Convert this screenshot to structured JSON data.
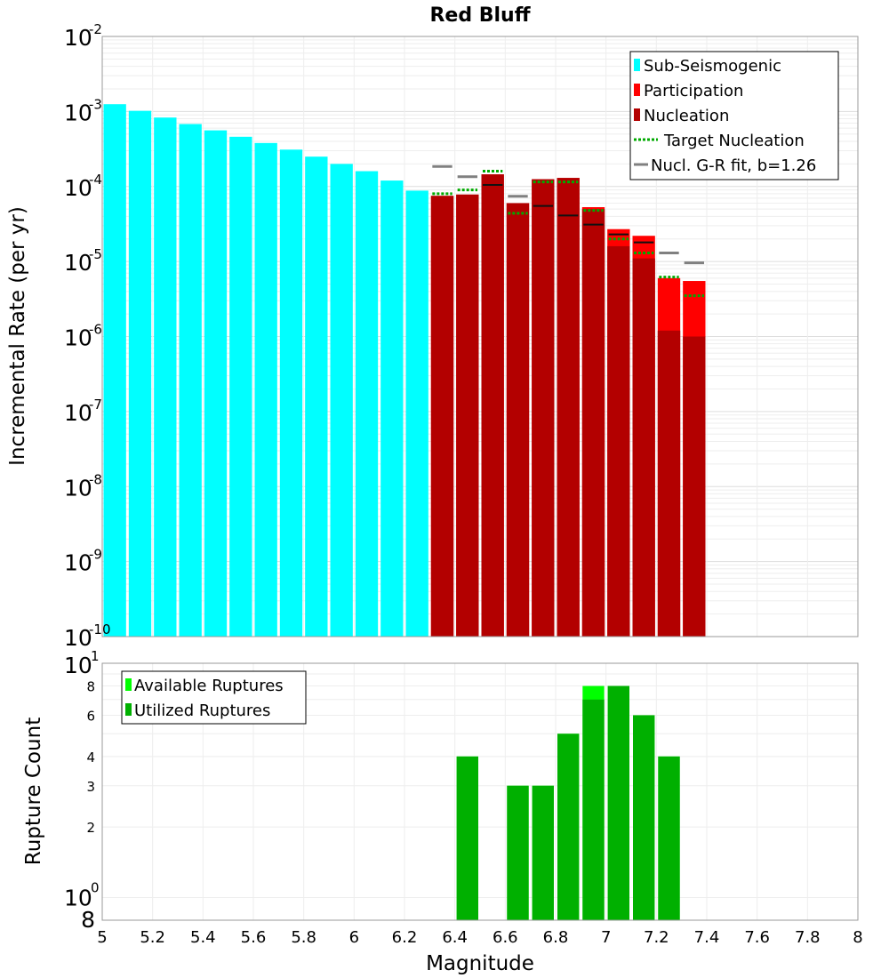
{
  "chart_data": [
    {
      "type": "bar",
      "title": "Red Bluff",
      "xlabel": "",
      "ylabel": "Incremental Rate (per yr)",
      "yscale": "log",
      "xlim": [
        5,
        8
      ],
      "ylim": [
        1e-10,
        0.01
      ],
      "y_tick_exponents": [
        -2,
        -3,
        -4,
        -5,
        -6,
        -7,
        -8,
        -9,
        -10
      ],
      "y_tick_base": "10",
      "bin_width": 0.1,
      "series": [
        {
          "name": "Sub-Seismogenic",
          "color": "#00ffff",
          "x": [
            5.05,
            5.15,
            5.25,
            5.35,
            5.45,
            5.55,
            5.65,
            5.75,
            5.85,
            5.95,
            6.05,
            6.15,
            6.25
          ],
          "values": [
            0.00125,
            0.00102,
            0.00083,
            0.00068,
            0.00056,
            0.00046,
            0.00038,
            0.00031,
            0.00025,
            0.0002,
            0.00016,
            0.00012,
            8.8e-05
          ]
        },
        {
          "name": "Participation",
          "color": "#ff0000",
          "x": [
            6.35,
            6.45,
            6.55,
            6.65,
            6.75,
            6.85,
            6.95,
            7.05,
            7.15,
            7.25,
            7.35
          ],
          "values": [
            7.5e-05,
            7.8e-05,
            0.000145,
            6e-05,
            0.000125,
            0.00013,
            5.3e-05,
            2.7e-05,
            2.2e-05,
            6e-06,
            5.5e-06
          ]
        },
        {
          "name": "Nucleation",
          "color": "#b30000",
          "x": [
            6.35,
            6.45,
            6.55,
            6.65,
            6.75,
            6.85,
            6.95,
            7.05,
            7.15,
            7.25,
            7.35
          ],
          "values": [
            7.5e-05,
            7.8e-05,
            0.000145,
            6e-05,
            0.000125,
            0.00013,
            5e-05,
            1.6e-05,
            1.1e-05,
            1.2e-06,
            1e-06
          ]
        },
        {
          "name": "Target Nucleation",
          "color": "#00aa00",
          "style": "dotted",
          "x": [
            6.35,
            6.45,
            6.55,
            6.65,
            6.75,
            6.85,
            6.95,
            7.05,
            7.15,
            7.25,
            7.35
          ],
          "values": [
            8e-05,
            9e-05,
            0.00016,
            4.4e-05,
            0.000115,
            0.000115,
            4.8e-05,
            2e-05,
            1.3e-05,
            6.2e-06,
            3.5e-06
          ]
        },
        {
          "name": "Nucleation (black)",
          "color": "#111111",
          "x": [
            6.55,
            6.75,
            6.85,
            6.95,
            7.05,
            7.15
          ],
          "values": [
            0.000105,
            5.5e-05,
            4.1e-05,
            3.1e-05,
            2.3e-05,
            1.8e-05
          ]
        },
        {
          "name": "Nucl. G-R fit, b=1.26",
          "color": "#808080",
          "x": [
            6.35,
            6.45,
            6.65,
            7.25,
            7.35
          ],
          "values": [
            0.000185,
            0.000135,
            7.4e-05,
            1.3e-05,
            9.6e-06
          ]
        }
      ],
      "legend": [
        "Sub-Seismogenic",
        "Participation",
        "Nucleation",
        "Target Nucleation",
        "Nucl. G-R fit, b=1.26"
      ],
      "legend_position": "top-right",
      "grid": true
    },
    {
      "type": "bar",
      "title": "",
      "xlabel": "Magnitude",
      "ylabel": "Rupture Count",
      "yscale": "log",
      "xlim": [
        5,
        8
      ],
      "ylim": [
        0.8,
        10
      ],
      "x_ticks": [
        "5",
        "5.2",
        "5.4",
        "5.6",
        "5.8",
        "6",
        "6.2",
        "6.4",
        "6.6",
        "6.8",
        "7",
        "7.2",
        "7.4",
        "7.6",
        "7.8",
        "8"
      ],
      "y_minor_tick_labels": [
        {
          "value": 8,
          "label": "8"
        },
        {
          "value": 6,
          "label": "6"
        },
        {
          "value": 4,
          "label": "4"
        },
        {
          "value": 3,
          "label": "3"
        },
        {
          "value": 2,
          "label": "2"
        }
      ],
      "y_top_label": {
        "base": "10",
        "exp": "1"
      },
      "y_mid_label": {
        "base": "10",
        "exp": "0"
      },
      "y_bottom_label": "8",
      "bin_width": 0.1,
      "series": [
        {
          "name": "Available Ruptures",
          "color": "#00ff00",
          "x": [
            6.45,
            6.65,
            6.75,
            6.85,
            6.95,
            7.05,
            7.15,
            7.25
          ],
          "values": [
            4,
            3,
            3,
            5,
            8,
            8,
            6,
            4
          ]
        },
        {
          "name": "Utilized Ruptures",
          "color": "#00b000",
          "x": [
            6.45,
            6.65,
            6.75,
            6.85,
            6.95,
            7.05,
            7.15,
            7.25
          ],
          "values": [
            4,
            3,
            3,
            5,
            7,
            8,
            6,
            4
          ]
        }
      ],
      "legend": [
        "Available Ruptures",
        "Utilized Ruptures"
      ],
      "legend_position": "top-left",
      "grid": true
    }
  ]
}
